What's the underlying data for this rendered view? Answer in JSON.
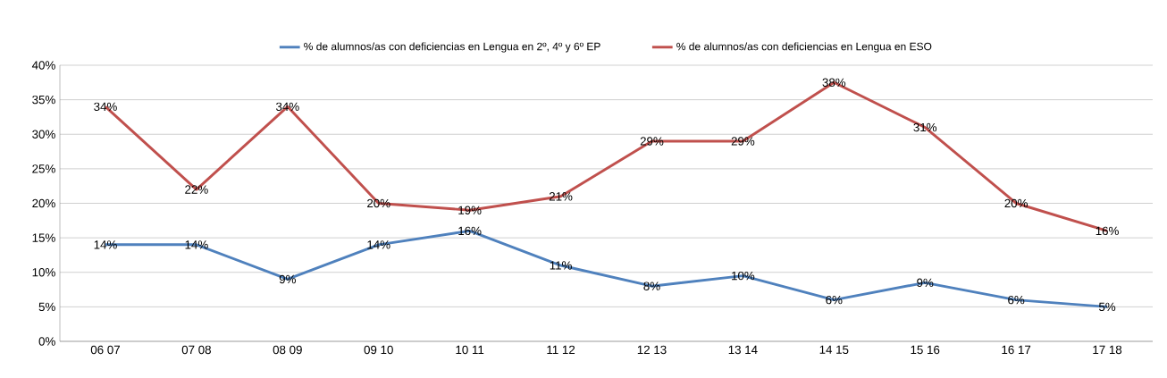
{
  "chart_data": {
    "type": "line",
    "categories": [
      "06 07",
      "07 08",
      "08 09",
      "09 10",
      "10 11",
      "11 12",
      "12 13",
      "13 14",
      "14 15",
      "15 16",
      "16 17",
      "17 18"
    ],
    "series": [
      {
        "name": "% de alumnos/as con deficiencias en Lengua  en 2º, 4º y 6º EP",
        "color": "#4f81bd",
        "values": [
          14,
          14,
          9,
          14,
          16,
          11,
          8,
          9.5,
          6,
          8.5,
          6,
          5
        ],
        "value_labels": [
          "14%",
          "14%",
          "9%",
          "14%",
          "16%",
          "11%",
          "8%",
          "10%",
          "6%",
          "9%",
          "6%",
          "5%"
        ]
      },
      {
        "name": "% de alumnos/as con deficiencias en Lengua  en  ESO",
        "color": "#c0504d",
        "values": [
          34,
          22,
          34,
          20,
          19,
          21,
          29,
          29,
          37.5,
          31,
          20,
          16
        ],
        "value_labels": [
          "34%",
          "22%",
          "34%",
          "20%",
          "19%",
          "21%",
          "29%",
          "29%",
          "38%",
          "31%",
          "20%",
          "16%"
        ]
      }
    ],
    "ylim": [
      0,
      40
    ],
    "yticks": [
      {
        "value": 0,
        "label": "0%"
      },
      {
        "value": 5,
        "label": "5%"
      },
      {
        "value": 10,
        "label": "10%"
      },
      {
        "value": 15,
        "label": "15%"
      },
      {
        "value": 20,
        "label": "20%"
      },
      {
        "value": 25,
        "label": "25%"
      },
      {
        "value": 30,
        "label": "30%"
      },
      {
        "value": 35,
        "label": "35%"
      },
      {
        "value": 40,
        "label": "40%"
      }
    ],
    "grid": "y",
    "legend": "top",
    "marker": "none",
    "line_style": "solid"
  }
}
